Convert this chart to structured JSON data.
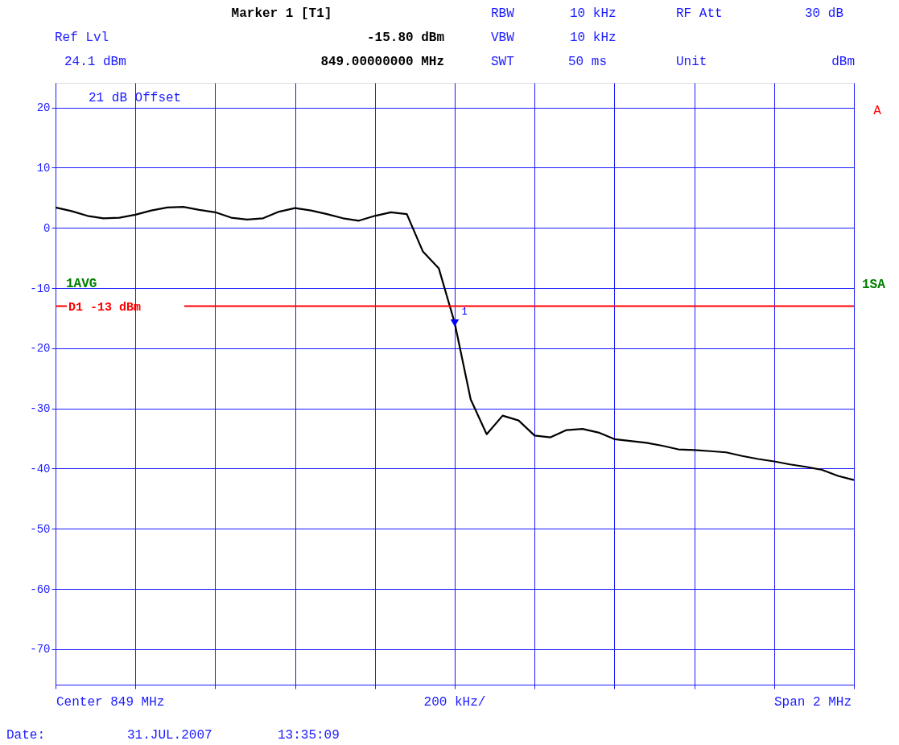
{
  "chart_data": {
    "type": "line",
    "categories": [
      null,
      null,
      null,
      null,
      null,
      null,
      null,
      null,
      null,
      null,
      null,
      null,
      null,
      null,
      null,
      null,
      null,
      null,
      null,
      null,
      null,
      null,
      null,
      null,
      null,
      null,
      null,
      null,
      null,
      null,
      null,
      null,
      null,
      null,
      null,
      null,
      null,
      null,
      null,
      null,
      null,
      null,
      null,
      null,
      null,
      null,
      null,
      null,
      null,
      null,
      null
    ],
    "ylim": [
      -75.9,
      24.1
    ],
    "yticks": [
      20,
      10,
      0,
      -10,
      -20,
      -30,
      -40,
      -50,
      -60,
      -70
    ],
    "tick_labels": "y",
    "grid": true,
    "series": [
      {
        "color": "#000000",
        "values": [
          3.4,
          2.8,
          2.0,
          1.6,
          1.7,
          2.2,
          2.9,
          3.4,
          3.5,
          3.0,
          2.6,
          1.7,
          1.4,
          1.6,
          2.7,
          3.3,
          2.9,
          2.3,
          1.6,
          1.2,
          2.0,
          2.6,
          2.3,
          -3.9,
          -6.7,
          -15.8,
          -28.5,
          -34.3,
          -31.2,
          -32.0,
          -34.5,
          -34.8,
          -33.6,
          -33.4,
          -34.0,
          -35.1,
          -35.4,
          -35.7,
          -36.2,
          -36.8,
          -36.9,
          -37.1,
          -37.3,
          -37.9,
          -38.4,
          -38.8,
          -39.3,
          -39.7,
          -40.2,
          -41.2,
          -41.9
        ]
      },
      {
        "type": "scatter",
        "name": "1",
        "marker": "triangle",
        "color": "#0000ff",
        "values": [
          null,
          null,
          null,
          null,
          null,
          null,
          null,
          null,
          null,
          null,
          null,
          null,
          null,
          null,
          null,
          null,
          null,
          null,
          null,
          null,
          null,
          null,
          null,
          null,
          null,
          -15.8,
          null,
          null,
          null,
          null,
          null,
          null,
          null,
          null,
          null,
          null,
          null,
          null,
          null,
          null,
          null,
          null,
          null,
          null,
          null,
          null,
          null,
          null,
          null,
          null,
          null
        ]
      }
    ],
    "ref_lines": [
      {
        "axis": "y",
        "value": -13,
        "label": "D1 -13 dBm",
        "color": "#ff0000"
      }
    ],
    "annotations": [
      "Marker 1 [T1]",
      "Ref Lvl",
      "-15.80 dBm",
      "24.1 dBm",
      "849.00000000 MHz",
      "RBW",
      "10 kHz",
      "RF Att",
      "30 dB",
      "VBW",
      "10 kHz",
      "SWT",
      "50 ms",
      "Unit",
      "dBm",
      "21 dB Offset",
      "A",
      "1AVG",
      "1SA",
      "Center 849 MHz",
      "200 kHz/",
      "Span 2 MHz",
      "Date:",
      "31.JUL.2007",
      "13:35:09"
    ]
  }
}
